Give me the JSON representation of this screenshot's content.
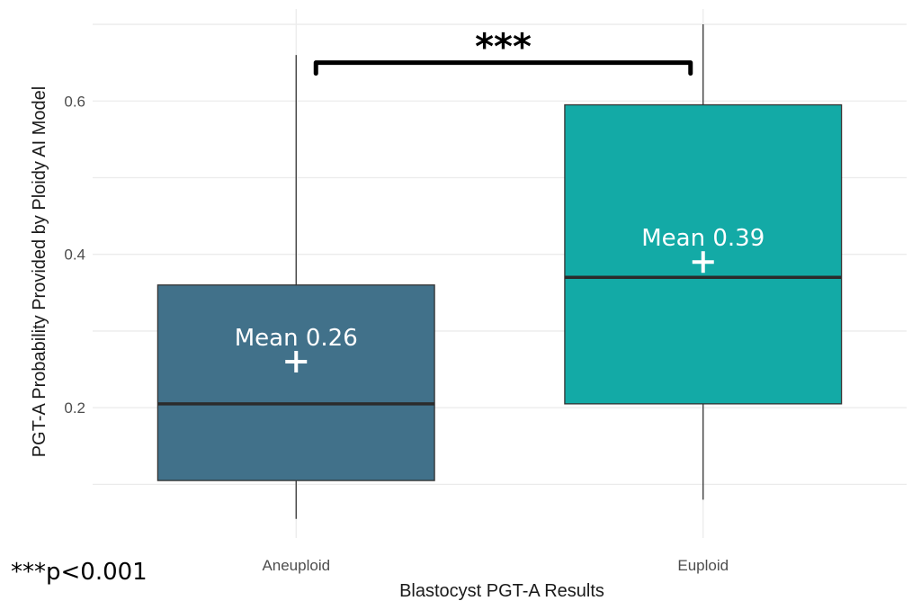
{
  "chart_data": {
    "type": "box",
    "xlabel": "Blastocyst PGT-A Results",
    "ylabel": "PGT-A Probability Provided by Ploidy AI Model",
    "ylim": [
      0.03,
      0.72
    ],
    "yticks": [
      0.2,
      0.4,
      0.6
    ],
    "ytick_labels": [
      "0.2",
      "0.4",
      "0.6"
    ],
    "grid": true,
    "categories": [
      "Aneuploid",
      "Euploid"
    ],
    "boxes": [
      {
        "category": "Aneuploid",
        "whisker_low": 0.055,
        "q1": 0.105,
        "median": 0.205,
        "q3": 0.36,
        "whisker_high": 0.66,
        "mean": 0.26,
        "mean_label": "Mean 0.26",
        "color": "#41718a"
      },
      {
        "category": "Euploid",
        "whisker_low": 0.08,
        "q1": 0.205,
        "median": 0.37,
        "q3": 0.595,
        "whisker_high": 0.7,
        "mean": 0.39,
        "mean_label": "Mean 0.39",
        "color": "#13aaa6"
      }
    ],
    "significance": {
      "label": "***",
      "from": "Aneuploid",
      "to": "Euploid",
      "y": 0.65
    },
    "footnote": "***p<0.001"
  }
}
